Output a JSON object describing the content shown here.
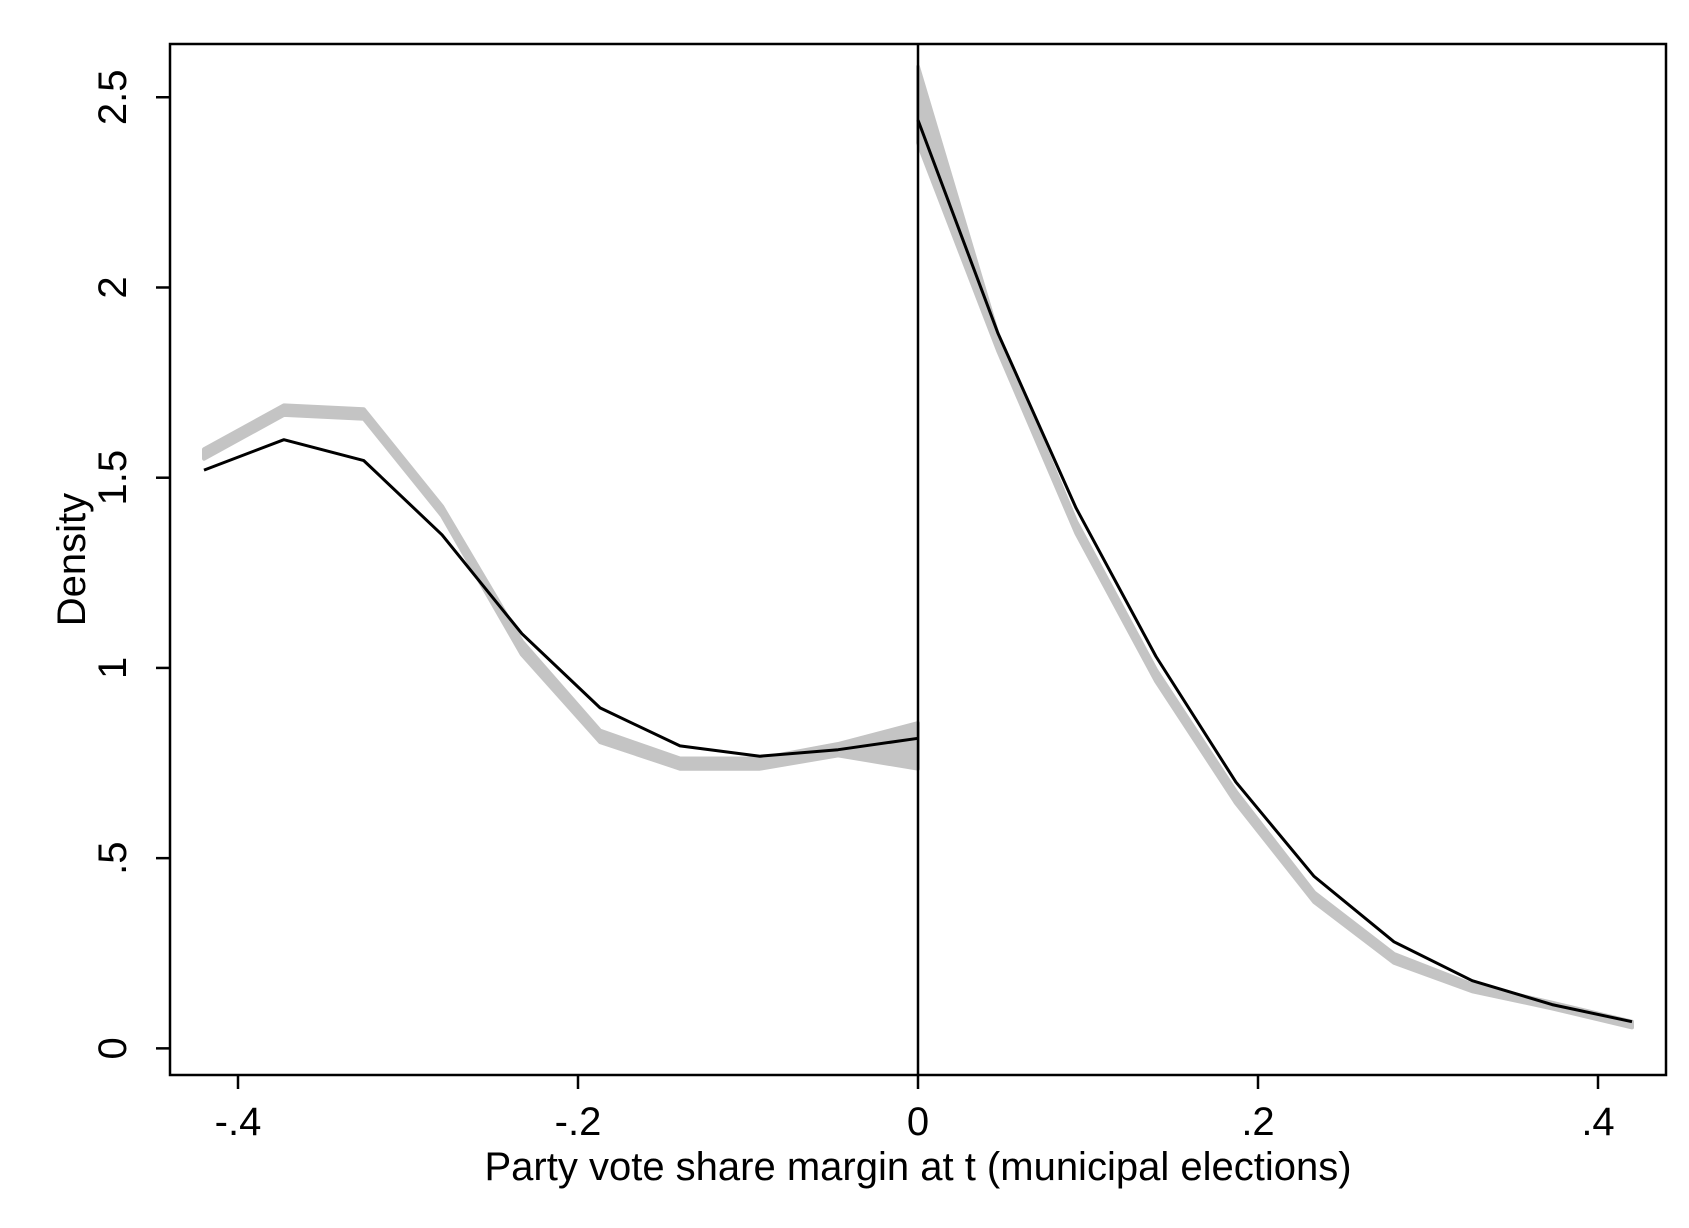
{
  "chart_data": {
    "type": "line",
    "title": "",
    "xlabel": "Party vote share margin at t (municipal elections)",
    "ylabel": "Density",
    "xlim": [
      -0.44,
      0.44
    ],
    "ylim": [
      -0.07,
      2.64
    ],
    "x_ticks": [
      -0.4,
      -0.2,
      0,
      0.2,
      0.4
    ],
    "x_tick_labels": [
      "-.4",
      "-.2",
      "0",
      ".2",
      ".4"
    ],
    "y_ticks": [
      0,
      0.5,
      1,
      1.5,
      2,
      2.5
    ],
    "y_tick_labels": [
      "0",
      ".5",
      "1",
      "1.5",
      "2",
      "2.5"
    ],
    "grid": false,
    "legend": "none",
    "cutoff_line_x": 0,
    "colors": {
      "line": "#000000",
      "band": "#c4c4c4",
      "frame": "#000000",
      "background": "#ffffff"
    },
    "series": [
      {
        "role": "density-left",
        "x": [
          -0.42,
          -0.373,
          -0.326,
          -0.28,
          -0.233,
          -0.187,
          -0.14,
          -0.093,
          -0.047,
          0
        ],
        "values": [
          1.52,
          1.6,
          1.545,
          1.35,
          1.09,
          0.895,
          0.795,
          0.768,
          0.785,
          0.815
        ]
      },
      {
        "role": "density-right",
        "x": [
          0,
          0.047,
          0.093,
          0.14,
          0.187,
          0.233,
          0.28,
          0.326,
          0.373,
          0.42
        ],
        "values": [
          2.44,
          1.88,
          1.42,
          1.03,
          0.7,
          0.452,
          0.28,
          0.178,
          0.115,
          0.07
        ]
      },
      {
        "role": "band-left",
        "x": [
          -0.42,
          -0.373,
          -0.326,
          -0.28,
          -0.233,
          -0.187,
          -0.14,
          -0.093,
          -0.047,
          0
        ],
        "lower": [
          1.55,
          1.665,
          1.655,
          1.4,
          1.035,
          0.805,
          0.735,
          0.735,
          0.77,
          0.735
        ],
        "upper": [
          1.575,
          1.69,
          1.68,
          1.425,
          1.07,
          0.835,
          0.762,
          0.762,
          0.8,
          0.855
        ]
      },
      {
        "role": "band-right",
        "x": [
          0,
          0.047,
          0.093,
          0.14,
          0.187,
          0.233,
          0.28,
          0.326,
          0.373,
          0.42
        ],
        "lower": [
          2.38,
          1.835,
          1.355,
          0.965,
          0.645,
          0.385,
          0.225,
          0.15,
          0.105,
          0.055
        ],
        "upper": [
          2.58,
          1.875,
          1.385,
          0.995,
          0.675,
          0.41,
          0.248,
          0.168,
          0.12,
          0.07
        ]
      }
    ]
  }
}
